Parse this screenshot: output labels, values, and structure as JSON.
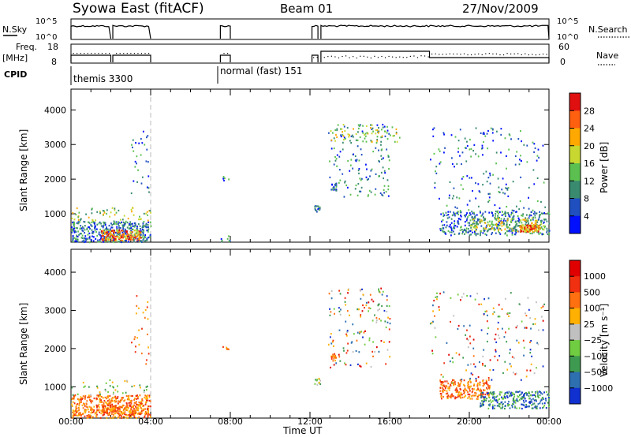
{
  "header": {
    "station": "Syowa East (fitACF)",
    "beam": "Beam 01",
    "date": "27/Nov/2009"
  },
  "labels": {
    "nsky": "N.Sky",
    "nsearch": "N.Search",
    "freq1": "Freq.",
    "freq2": "[MHz]",
    "nave": "Nave",
    "cpid": "CPID",
    "x_axis": "Time UT",
    "y_axis": "Slant Range [km]",
    "power_bar": "Power [dB]",
    "velocity_bar": "Velocity [m s⁻¹]",
    "noise_left_hi": "10^5",
    "noise_left_lo": "10^0",
    "noise_right_hi": "10^5",
    "noise_right_lo": "10^0",
    "freq_hi": "18",
    "freq_lo": "8",
    "nave_hi": "60",
    "nave_lo": "0",
    "cpid_a": "themis 3300",
    "cpid_b": "normal (fast) 151"
  },
  "chart_data": [
    {
      "type": "heatmap",
      "name": "power",
      "xlabel": "Time UT",
      "ylabel": "Slant Range [km]",
      "x_ticks": [
        "00:00",
        "04:00",
        "08:00",
        "12:00",
        "16:00",
        "20:00",
        "00:00"
      ],
      "y_ticks": [
        1000,
        2000,
        3000,
        4000
      ],
      "xlim_hours": [
        0,
        24
      ],
      "ylim_km": [
        180,
        4600
      ],
      "colorbar": {
        "label": "Power [dB]",
        "ticks": [
          4,
          8,
          12,
          16,
          20,
          24,
          28
        ],
        "range": [
          0,
          30
        ],
        "colors": [
          "#0010ff",
          "#2050c0",
          "#3a8a70",
          "#5cc050",
          "#c8d830",
          "#ffa800",
          "#ff6010",
          "#e01010"
        ]
      }
    },
    {
      "type": "heatmap",
      "name": "velocity",
      "xlabel": "Time UT",
      "ylabel": "Slant Range [km]",
      "x_ticks": [
        "00:00",
        "04:00",
        "08:00",
        "12:00",
        "16:00",
        "20:00",
        "00:00"
      ],
      "y_ticks": [
        1000,
        2000,
        3000,
        4000
      ],
      "xlim_hours": [
        0,
        24
      ],
      "ylim_km": [
        180,
        4600
      ],
      "colorbar": {
        "label": "Velocity [m s⁻¹]",
        "ticks": [
          "1000",
          "500",
          "100",
          "25",
          "−25",
          "−100",
          "−500",
          "−1000"
        ],
        "colors": [
          "#1030d0",
          "#2e6fb0",
          "#3e9a50",
          "#70cc40",
          "#c0c0c0",
          "#ffb000",
          "#ff7010",
          "#f03010",
          "#e00000"
        ]
      }
    }
  ]
}
